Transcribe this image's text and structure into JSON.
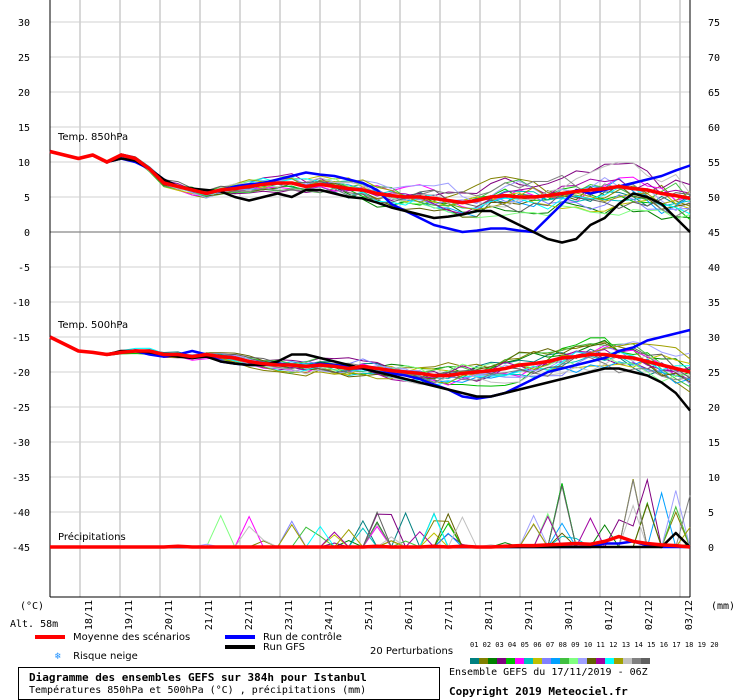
{
  "chart_data": {
    "type": "line",
    "title": "Diagramme des ensembles GEFS sur 384h pour Istanbul",
    "subtitle": "Températures 850hPa et 500hPa (°C) , précipitations (mm)",
    "x_labels": [
      "18/11",
      "19/11",
      "20/11",
      "21/11",
      "22/11",
      "23/11",
      "24/11",
      "25/11",
      "26/11",
      "27/11",
      "28/11",
      "29/11",
      "30/11",
      "01/12",
      "02/12",
      "03/12"
    ],
    "left_axis_ticks": [
      30,
      25,
      20,
      15,
      10,
      5,
      0,
      -5,
      -10,
      -15,
      -20,
      -25,
      -30,
      -35,
      -40,
      -45
    ],
    "right_axis_ticks": [
      75,
      70,
      65,
      60,
      55,
      50,
      45,
      40,
      35,
      30,
      25,
      20,
      15,
      10,
      5,
      0
    ],
    "left_axis_unit": "(°C)",
    "right_axis_unit": "(mm)",
    "altitude_label": "Alt. 58m",
    "panels": [
      {
        "label": "Temp. 850hPa",
        "series": [
          {
            "name": "Moyenne des scénarios",
            "values": [
              11.5,
              11,
              10.5,
              11,
              10,
              11,
              10.5,
              9,
              7,
              6.5,
              6,
              5.5,
              6,
              6.2,
              6.5,
              6.8,
              7,
              7,
              6.5,
              6.8,
              6.5,
              6.2,
              6,
              5.5,
              5.2,
              5,
              5,
              4.8,
              4.5,
              4.2,
              4.5,
              5,
              5.2,
              5,
              5,
              5.2,
              5.5,
              5.8,
              6,
              6.2,
              6.5,
              6.2,
              6,
              5.5,
              5.2,
              4.8
            ]
          },
          {
            "name": "Run de contrôle",
            "values": [
              11.5,
              11,
              10.5,
              11,
              10,
              10.5,
              10,
              9,
              7.5,
              6.5,
              6,
              5.5,
              6,
              6.5,
              6.8,
              7,
              7.5,
              8,
              8.5,
              8.2,
              8,
              7.5,
              7,
              6,
              4,
              3,
              2,
              1,
              0.5,
              0,
              0.2,
              0.5,
              0.5,
              0.2,
              0,
              2,
              4,
              6,
              5.5,
              6,
              6.5,
              7,
              7.5,
              8,
              8.8,
              9.5
            ]
          },
          {
            "name": "Run GFS",
            "values": [
              11.5,
              11,
              10.5,
              11,
              10,
              10.5,
              10.2,
              9,
              7.5,
              6.5,
              6.2,
              6,
              5.8,
              5,
              4.5,
              5,
              5.5,
              5,
              6,
              6,
              5.5,
              5,
              4.8,
              4.2,
              3.5,
              3,
              2.5,
              2,
              2.2,
              2.5,
              3,
              3,
              2,
              1,
              0,
              -1,
              -1.5,
              -1,
              1,
              2,
              4,
              5.5,
              5,
              4,
              2,
              0
            ]
          }
        ]
      },
      {
        "label": "Temp. 500hPa",
        "series": [
          {
            "name": "Moyenne des scénarios",
            "values": [
              -15,
              -16,
              -17,
              -17.2,
              -17.5,
              -17.2,
              -17,
              -17,
              -17.5,
              -17.5,
              -17.8,
              -17.5,
              -17.8,
              -18,
              -18.5,
              -18.8,
              -19,
              -19,
              -19.2,
              -19,
              -19.2,
              -19.5,
              -19.2,
              -19.5,
              -19.8,
              -20,
              -20.2,
              -20.5,
              -20.5,
              -20.2,
              -20,
              -19.8,
              -19.5,
              -19,
              -18.8,
              -18.5,
              -18,
              -17.8,
              -17.5,
              -17.5,
              -17.8,
              -18,
              -18.5,
              -19,
              -19.5,
              -20
            ]
          },
          {
            "name": "Run de contrôle",
            "values": [
              -15,
              -16,
              -17,
              -17.2,
              -17.5,
              -17.2,
              -17,
              -17.5,
              -17.8,
              -17.5,
              -17,
              -17.5,
              -18.5,
              -18.8,
              -19,
              -19,
              -18.8,
              -19,
              -19.2,
              -18.8,
              -19,
              -19.2,
              -19.5,
              -20,
              -20.2,
              -20.5,
              -21,
              -21.8,
              -22.5,
              -23.5,
              -23.8,
              -23.5,
              -23,
              -22,
              -21,
              -20,
              -19.5,
              -19,
              -18.5,
              -18,
              -17,
              -16.5,
              -15.5,
              -15,
              -14.5,
              -14
            ]
          },
          {
            "name": "Run GFS",
            "values": [
              -15,
              -16,
              -17,
              -17.2,
              -17.5,
              -17,
              -17,
              -17.2,
              -17.5,
              -17.8,
              -18,
              -17.8,
              -18.5,
              -18.8,
              -19,
              -19,
              -18.5,
              -17.5,
              -17.5,
              -18,
              -18.5,
              -19,
              -19.5,
              -20,
              -20.5,
              -21,
              -21.5,
              -22,
              -22.5,
              -23,
              -23.5,
              -23.5,
              -23,
              -22.5,
              -22,
              -21.5,
              -21,
              -20.5,
              -20,
              -19.5,
              -19.5,
              -20,
              -20.5,
              -21.5,
              -23,
              -25.5
            ]
          }
        ]
      },
      {
        "label": "Précipitations",
        "series": [
          {
            "name": "Moyenne des scénarios",
            "values": [
              0,
              0,
              0,
              0,
              0,
              0,
              0,
              0,
              0,
              0.1,
              0,
              0,
              0,
              0,
              0,
              0,
              0,
              0,
              0,
              0,
              0,
              0,
              0,
              0.1,
              0,
              0,
              0,
              0.1,
              0,
              0.1,
              0,
              0,
              0.1,
              0.2,
              0.2,
              0.3,
              0.4,
              0.5,
              0.4,
              0.8,
              1.5,
              0.8,
              0.5,
              0.3,
              0.2,
              0
            ]
          },
          {
            "name": "Run de contrôle",
            "values": [
              0,
              0,
              0,
              0,
              0,
              0,
              0,
              0,
              0,
              0,
              0,
              0,
              0,
              0,
              0,
              0,
              0,
              0,
              0,
              0,
              0,
              0,
              0,
              0,
              0,
              0,
              0,
              0,
              0,
              0,
              0,
              0,
              0,
              0,
              0,
              0,
              0,
              0,
              0,
              0.5,
              0.5,
              0.8,
              0.2,
              0,
              0,
              0
            ]
          },
          {
            "name": "Run GFS",
            "values": [
              0,
              0,
              0,
              0,
              0,
              0,
              0,
              0,
              0,
              0,
              0,
              0,
              0,
              0,
              0,
              0,
              0,
              0,
              0,
              0,
              0,
              0,
              0,
              0,
              0,
              0,
              0,
              0,
              0,
              0,
              0,
              0,
              0,
              0,
              0,
              0,
              0,
              0,
              0,
              0,
              0,
              0,
              0,
              0,
              2,
              0
            ]
          }
        ]
      }
    ]
  },
  "legend": {
    "mean": "Moyenne des scénarios",
    "control": "Run de contrôle",
    "gfs": "Run GFS",
    "snow": "Risque neige",
    "perturbations": "20 Perturbations",
    "pert_numbers": "01 02 03 04 05 06 07 08 09 10 11 12 13 14 15 16 17 18 19 20"
  },
  "colors": {
    "mean": "#ff0000",
    "control": "#0000ff",
    "gfs": "#000000",
    "perturbations": [
      "#008080",
      "#808000",
      "#008000",
      "#800080",
      "#00c000",
      "#ff00ff",
      "#00c0c0",
      "#c0c000",
      "#8080ff",
      "#00a0ff",
      "#40c040",
      "#80ff80",
      "#a0a0ff",
      "#606000",
      "#a000a0",
      "#00ffff",
      "#a0a000",
      "#c0c0c0",
      "#808080",
      "#606060"
    ]
  },
  "footer": {
    "title": "Diagramme des ensembles GEFS sur 384h pour Istanbul",
    "subtitle": "Températures 850hPa et 500hPa (°C) , précipitations (mm)",
    "ensemble": "Ensemble GEFS du 17/11/2019 - 06Z",
    "copyright": "Copyright 2019 Meteociel.fr"
  }
}
